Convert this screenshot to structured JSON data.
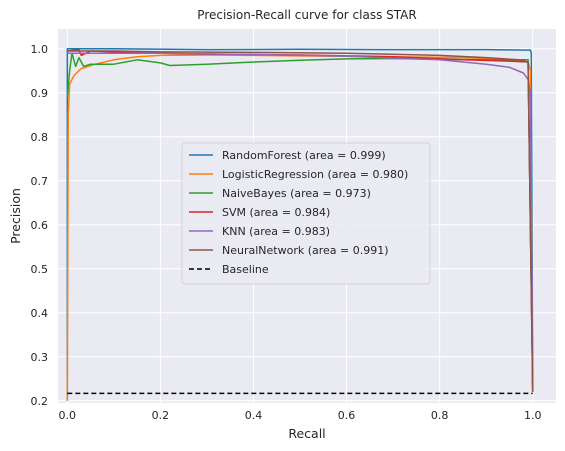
{
  "chart_data": {
    "type": "line",
    "title": "Precision-Recall curve for class STAR",
    "xlabel": "Recall",
    "ylabel": "Precision",
    "xlim": [
      -0.02,
      1.05
    ],
    "ylim": [
      0.195,
      1.045
    ],
    "x_ticks": [
      "0.0",
      "0.2",
      "0.4",
      "0.6",
      "0.8",
      "1.0"
    ],
    "y_ticks": [
      "0.2",
      "0.3",
      "0.4",
      "0.5",
      "0.6",
      "0.7",
      "0.8",
      "0.9",
      "1.0"
    ],
    "grid": true,
    "legend_position": "center",
    "background": "#eaeaf2",
    "series": [
      {
        "name": "RandomForest (area = 0.999)",
        "color": "#1f77b4",
        "style": "solid",
        "points": [
          [
            0,
            0.2
          ],
          [
            0,
            1.0
          ],
          [
            0.1,
            1.0
          ],
          [
            0.3,
            0.998
          ],
          [
            0.5,
            0.999
          ],
          [
            0.7,
            0.998
          ],
          [
            0.9,
            0.998
          ],
          [
            0.995,
            0.997
          ],
          [
            0.997,
            0.99
          ],
          [
            1.0,
            0.22
          ]
        ]
      },
      {
        "name": "LogisticRegression (area = 0.980)",
        "color": "#ff7f0e",
        "style": "solid",
        "points": [
          [
            0,
            0.2
          ],
          [
            0.002,
            0.85
          ],
          [
            0.005,
            0.92
          ],
          [
            0.015,
            0.94
          ],
          [
            0.03,
            0.955
          ],
          [
            0.06,
            0.965
          ],
          [
            0.1,
            0.975
          ],
          [
            0.15,
            0.982
          ],
          [
            0.2,
            0.985
          ],
          [
            0.3,
            0.986
          ],
          [
            0.5,
            0.984
          ],
          [
            0.7,
            0.982
          ],
          [
            0.85,
            0.98
          ],
          [
            0.95,
            0.976
          ],
          [
            0.99,
            0.97
          ],
          [
            0.995,
            0.95
          ],
          [
            1.0,
            0.22
          ]
        ]
      },
      {
        "name": "NaiveBayes (area = 0.973)",
        "color": "#2ca02c",
        "style": "solid",
        "points": [
          [
            0,
            0.89
          ],
          [
            0.005,
            0.95
          ],
          [
            0.01,
            0.99
          ],
          [
            0.018,
            0.96
          ],
          [
            0.025,
            0.98
          ],
          [
            0.035,
            0.96
          ],
          [
            0.05,
            0.965
          ],
          [
            0.1,
            0.965
          ],
          [
            0.15,
            0.975
          ],
          [
            0.2,
            0.968
          ],
          [
            0.22,
            0.962
          ],
          [
            0.3,
            0.965
          ],
          [
            0.4,
            0.97
          ],
          [
            0.5,
            0.974
          ],
          [
            0.6,
            0.977
          ],
          [
            0.7,
            0.978
          ],
          [
            0.8,
            0.976
          ],
          [
            0.9,
            0.975
          ],
          [
            0.99,
            0.975
          ],
          [
            1.0,
            0.22
          ]
        ]
      },
      {
        "name": "SVM (area = 0.984)",
        "color": "#d62728",
        "style": "solid",
        "points": [
          [
            0,
            0.995
          ],
          [
            0.025,
            0.998
          ],
          [
            0.03,
            0.985
          ],
          [
            0.04,
            0.99
          ],
          [
            0.05,
            0.995
          ],
          [
            0.1,
            0.993
          ],
          [
            0.2,
            0.99
          ],
          [
            0.3,
            0.988
          ],
          [
            0.5,
            0.986
          ],
          [
            0.7,
            0.982
          ],
          [
            0.85,
            0.975
          ],
          [
            0.95,
            0.972
          ],
          [
            0.99,
            0.97
          ],
          [
            1.0,
            0.22
          ]
        ]
      },
      {
        "name": "KNN (area = 0.983)",
        "color": "#9467bd",
        "style": "solid",
        "points": [
          [
            0,
            0.99
          ],
          [
            0.2,
            0.99
          ],
          [
            0.4,
            0.987
          ],
          [
            0.6,
            0.983
          ],
          [
            0.8,
            0.975
          ],
          [
            0.9,
            0.965
          ],
          [
            0.95,
            0.958
          ],
          [
            0.98,
            0.945
          ],
          [
            0.99,
            0.93
          ],
          [
            0.995,
            0.9
          ],
          [
            1.0,
            0.22
          ]
        ]
      },
      {
        "name": "NeuralNetwork (area = 0.991)",
        "color": "#8c564b",
        "style": "solid",
        "points": [
          [
            0,
            0.995
          ],
          [
            0.1,
            0.995
          ],
          [
            0.2,
            0.993
          ],
          [
            0.4,
            0.992
          ],
          [
            0.6,
            0.99
          ],
          [
            0.8,
            0.985
          ],
          [
            0.9,
            0.98
          ],
          [
            0.97,
            0.975
          ],
          [
            0.99,
            0.97
          ],
          [
            1.0,
            0.22
          ]
        ]
      },
      {
        "name": "Baseline",
        "color": "#000000",
        "style": "dashed",
        "points": [
          [
            0,
            0.217
          ],
          [
            1.0,
            0.217
          ]
        ]
      }
    ]
  }
}
